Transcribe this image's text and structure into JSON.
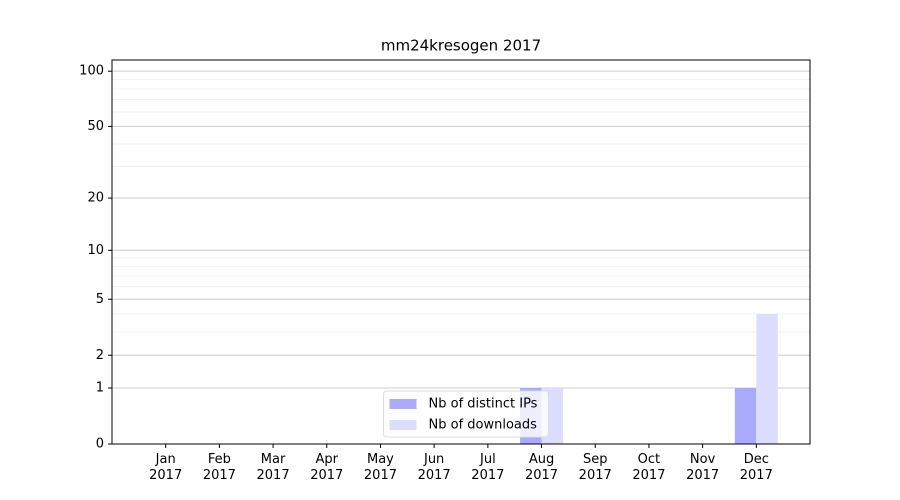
{
  "chart_data": {
    "type": "bar",
    "title": "mm24kresogen 2017",
    "categories": [
      "Jan\n2017",
      "Feb\n2017",
      "Mar\n2017",
      "Apr\n2017",
      "May\n2017",
      "Jun\n2017",
      "Jul\n2017",
      "Aug\n2017",
      "Sep\n2017",
      "Oct\n2017",
      "Nov\n2017",
      "Dec\n2017"
    ],
    "series": [
      {
        "name": "Nb of distinct IPs",
        "color": "#aaaaff",
        "values": [
          0,
          0,
          0,
          0,
          0,
          0,
          0,
          1,
          0,
          0,
          0,
          1
        ]
      },
      {
        "name": "Nb of downloads",
        "color": "#ddddff",
        "values": [
          0,
          0,
          0,
          0,
          0,
          0,
          0,
          1,
          0,
          0,
          0,
          4
        ]
      }
    ],
    "y_scale": "log1p",
    "ylim": [
      0,
      115
    ],
    "yticks": [
      0,
      1,
      2,
      5,
      10,
      20,
      50,
      100
    ],
    "minor_yticks": [
      3,
      4,
      6,
      7,
      8,
      9,
      30,
      40,
      60,
      70,
      80,
      90
    ],
    "grid": true,
    "legend": "lower center"
  }
}
